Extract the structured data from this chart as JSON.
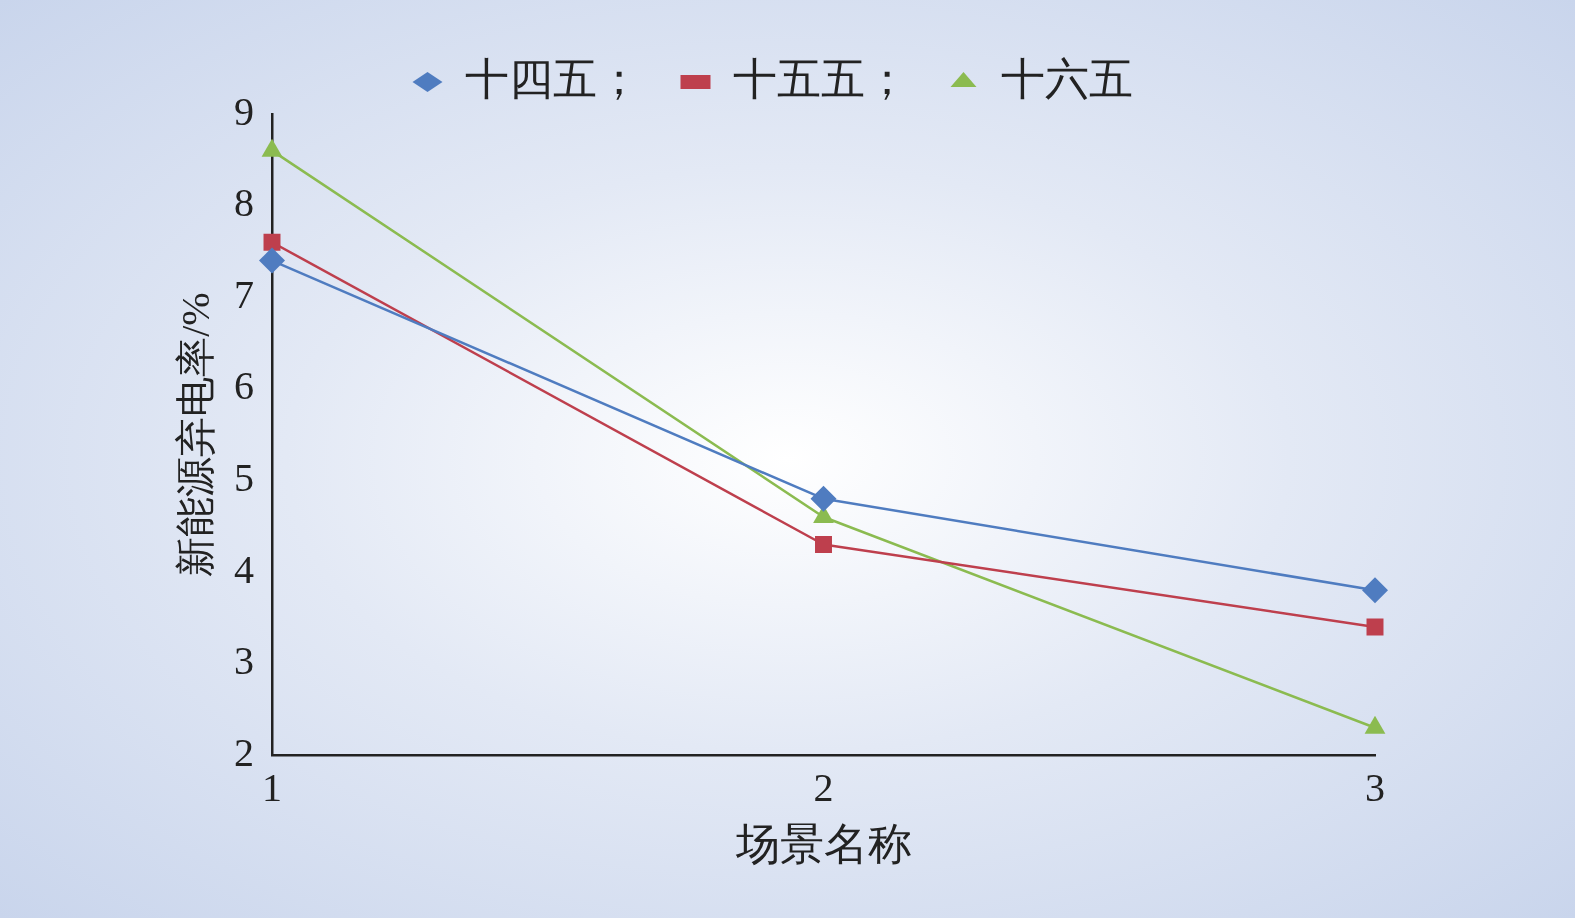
{
  "chart_data": {
    "type": "line",
    "xlabel": "场景名称",
    "ylabel": "新能源弃电率/%",
    "categories": [
      "1",
      "2",
      "3"
    ],
    "ylim": [
      2,
      9
    ],
    "yticks": [
      2,
      3,
      4,
      5,
      6,
      7,
      8,
      9
    ],
    "grid": false,
    "legend": "top",
    "line_style": "solid",
    "series": [
      {
        "name": "十四五；",
        "color": "#4f7cc0",
        "marker": "diamond",
        "values": [
          7.4,
          4.8,
          3.8
        ]
      },
      {
        "name": "十五五；",
        "color": "#be3f4d",
        "marker": "square",
        "values": [
          7.6,
          4.3,
          3.4
        ]
      },
      {
        "name": "十六五",
        "color": "#8bbb50",
        "marker": "triangle",
        "values": [
          8.6,
          4.6,
          2.3
        ]
      }
    ]
  }
}
